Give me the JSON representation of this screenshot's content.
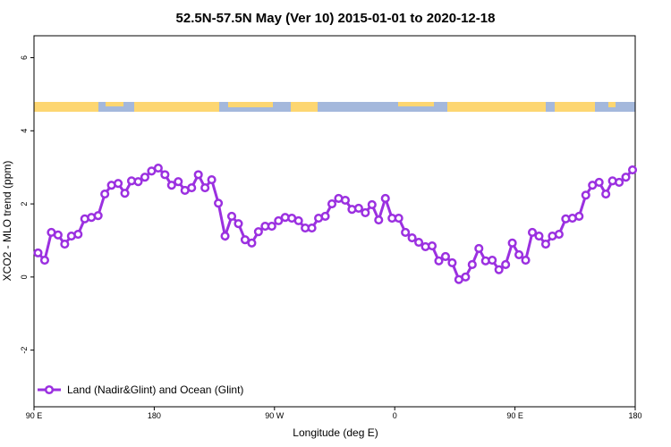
{
  "chart_data": {
    "type": "line",
    "title": "52.5N-57.5N May (Ver 10)   2015-01-01 to 2020-12-18",
    "x_label": "Longitude (deg E)",
    "y_label": "XCO2 - MLO trend (ppm)",
    "x": [
      93,
      98,
      103,
      108,
      113,
      118,
      123,
      128,
      133,
      138,
      143,
      148,
      153,
      158,
      163,
      168,
      173,
      178,
      183,
      188,
      193,
      198,
      203,
      208,
      213,
      218,
      223,
      228,
      233,
      238,
      243,
      248,
      253,
      258,
      263,
      268,
      273,
      278,
      283,
      288,
      293,
      298,
      303,
      308,
      313,
      318,
      323,
      328,
      333,
      338,
      343,
      348,
      353,
      358,
      363,
      368,
      373,
      378,
      383,
      388,
      393,
      398,
      403,
      408,
      413,
      418,
      423,
      428,
      433,
      438,
      443,
      448,
      453,
      458,
      463,
      468,
      473,
      478,
      483,
      488,
      493,
      498,
      503,
      508,
      513,
      518,
      523,
      528,
      533,
      538
    ],
    "series": [
      {
        "name": "Land (Nadir&Glint) and Ocean (Glint)",
        "color": "#9b30e0",
        "values": [
          0.66,
          0.46,
          1.22,
          1.15,
          0.9,
          1.12,
          1.17,
          1.59,
          1.63,
          1.68,
          2.27,
          2.51,
          2.56,
          2.29,
          2.63,
          2.61,
          2.73,
          2.9,
          2.98,
          2.8,
          2.51,
          2.61,
          2.37,
          2.44,
          2.8,
          2.44,
          2.66,
          2.02,
          1.12,
          1.66,
          1.46,
          1.02,
          0.93,
          1.24,
          1.39,
          1.39,
          1.54,
          1.63,
          1.61,
          1.54,
          1.34,
          1.34,
          1.61,
          1.66,
          2.0,
          2.15,
          2.1,
          1.85,
          1.88,
          1.76,
          1.98,
          1.56,
          2.15,
          1.61,
          1.61,
          1.22,
          1.07,
          0.95,
          0.83,
          0.85,
          0.44,
          0.56,
          0.39,
          -0.07,
          0.0,
          0.34,
          0.78,
          0.44,
          0.46,
          0.2,
          0.34,
          0.93,
          0.61,
          0.46,
          1.22,
          1.12,
          0.9,
          1.12,
          1.17,
          1.59,
          1.61,
          1.66,
          2.24,
          2.51,
          2.59,
          2.27,
          2.63,
          2.59,
          2.73,
          2.93
        ]
      }
    ],
    "xlim": [
      90,
      540
    ],
    "xticks": [
      {
        "value": 90,
        "label": "90 E"
      },
      180,
      {
        "value": 270,
        "label": "90 W"
      },
      {
        "value": 360,
        "label": "0"
      },
      {
        "value": 450,
        "label": "90 E"
      },
      {
        "value": 540,
        "label": "180"
      }
    ],
    "ylim": [
      -3.55,
      6.6
    ],
    "yticks": [
      -2,
      0,
      2,
      4,
      6
    ],
    "legend": "bottom-left"
  }
}
